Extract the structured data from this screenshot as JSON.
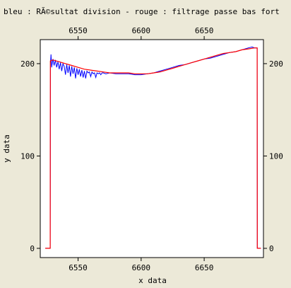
{
  "chart_data": {
    "type": "line",
    "title": "bleu : RÃ©sultat division - rouge : filtrage passe bas fort",
    "xlabel": "x data",
    "ylabel": "y data",
    "xlim": [
      6520,
      6697
    ],
    "ylim": [
      -10,
      226
    ],
    "x_ticks": [
      "6550",
      "6600",
      "6650"
    ],
    "x_tick_values": [
      6550,
      6600,
      6650
    ],
    "y_ticks": [
      "0",
      "100",
      "200"
    ],
    "y_tick_values": [
      0,
      100,
      200
    ],
    "grid": false,
    "legend": "none",
    "series": [
      {
        "color": "#0000ff",
        "x": [
          6524,
          6527.9,
          6528.1,
          6528.5,
          6529,
          6530,
          6531,
          6532,
          6533,
          6534,
          6535,
          6536,
          6537,
          6538,
          6539,
          6540,
          6541,
          6542,
          6543,
          6544,
          6545,
          6546,
          6547,
          6548,
          6549,
          6550,
          6551,
          6552,
          6553,
          6554,
          6555,
          6556,
          6557,
          6558,
          6559,
          6560,
          6561,
          6562,
          6563,
          6564,
          6565,
          6566,
          6567,
          6568,
          6569,
          6570,
          6572,
          6575,
          6580,
          6585,
          6590,
          6595,
          6600,
          6605,
          6610,
          6615,
          6620,
          6625,
          6630,
          6635,
          6640,
          6645,
          6650,
          6655,
          6660,
          6665,
          6670,
          6675,
          6680,
          6685,
          6688,
          6690,
          6692,
          6692.1,
          6694,
          6695
        ],
        "y": [
          0,
          0,
          200,
          210,
          196,
          205,
          198,
          204,
          196,
          202,
          194,
          201,
          192,
          200,
          197,
          188,
          199,
          190,
          198,
          186,
          197,
          189,
          196,
          184,
          195,
          188,
          194,
          186,
          193,
          185,
          192,
          184,
          192,
          190,
          191,
          186,
          191,
          189,
          190,
          185,
          190,
          189,
          190,
          188,
          190,
          190,
          189,
          190,
          189,
          189,
          189,
          188,
          188,
          189,
          190,
          192,
          194,
          196,
          198,
          199,
          201,
          203,
          205,
          206,
          208,
          210,
          212,
          213,
          215,
          217,
          218,
          217,
          217,
          0,
          0,
          0
        ]
      },
      {
        "color": "#ff0000",
        "x": [
          6524,
          6527.9,
          6528,
          6530,
          6535,
          6540,
          6545,
          6550,
          6555,
          6560,
          6565,
          6570,
          6575,
          6580,
          6585,
          6590,
          6595,
          6600,
          6605,
          6610,
          6615,
          6620,
          6625,
          6630,
          6635,
          6640,
          6645,
          6650,
          6655,
          6660,
          6665,
          6670,
          6675,
          6680,
          6685,
          6690,
          6692,
          6692.1,
          6695
        ],
        "y": [
          0,
          0,
          203,
          204,
          202,
          200,
          198,
          196,
          194,
          193,
          192,
          191,
          190,
          190,
          190,
          190,
          189,
          189,
          189,
          190,
          191,
          193,
          195,
          197,
          199,
          201,
          203,
          205,
          207,
          209,
          211,
          212,
          213,
          215,
          216,
          217,
          217,
          0,
          0
        ]
      }
    ]
  }
}
